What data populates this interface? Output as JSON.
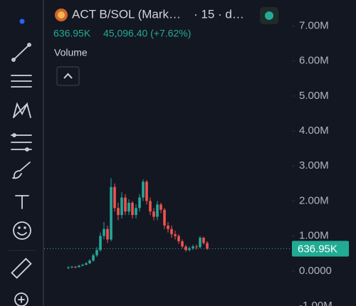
{
  "chart_data": {
    "type": "candlestick",
    "title": "ACT B/SOL (Mark…",
    "subtitle": "· 15 · d…",
    "last_price": {
      "value": 636950,
      "label": "636.95K"
    },
    "change": "45,096.40 (+7.62%)",
    "indicator": "Volume",
    "up_color": "#26a69a",
    "down_color": "#ef5350",
    "categories": [
      null,
      null,
      null,
      null,
      null,
      null,
      null,
      null,
      null,
      null,
      null,
      null,
      null,
      null,
      null,
      null,
      null,
      null,
      null,
      null,
      null,
      null,
      null,
      null,
      null,
      null,
      null,
      null,
      null,
      null,
      null,
      null,
      null,
      null,
      null,
      null,
      null,
      null,
      null,
      null
    ],
    "open": [
      90000,
      100000,
      120000,
      110000,
      150000,
      180000,
      220000,
      300000,
      450000,
      600000,
      1000000,
      1200000,
      900000,
      2400000,
      1800000,
      1600000,
      2100000,
      1700000,
      1950000,
      1600000,
      1800000,
      2100000,
      2550000,
      2000000,
      1700000,
      1550000,
      1900000,
      1750000,
      1300000,
      1200000,
      1050000,
      1000000,
      850000,
      700000,
      600000,
      650000,
      700000,
      680000,
      950000,
      800000
    ],
    "high": [
      140000,
      150000,
      150000,
      180000,
      210000,
      260000,
      340000,
      500000,
      680000,
      1100000,
      1400000,
      1300000,
      2650000,
      2500000,
      1950000,
      2250000,
      2200000,
      2050000,
      2000000,
      1900000,
      2200000,
      2620000,
      2600000,
      2100000,
      1800000,
      2000000,
      1950000,
      1800000,
      1400000,
      1300000,
      1150000,
      1050000,
      900000,
      750000,
      700000,
      750000,
      760000,
      1000000,
      980000,
      850000
    ],
    "low": [
      60000,
      80000,
      80000,
      100000,
      140000,
      160000,
      200000,
      260000,
      400000,
      550000,
      900000,
      800000,
      850000,
      1700000,
      1450000,
      1500000,
      1600000,
      1600000,
      1500000,
      1500000,
      1700000,
      2000000,
      1900000,
      1600000,
      1450000,
      1450000,
      1650000,
      1200000,
      1100000,
      950000,
      900000,
      780000,
      650000,
      550000,
      560000,
      600000,
      620000,
      650000,
      750000,
      600000
    ],
    "close": [
      100000,
      120000,
      110000,
      150000,
      180000,
      220000,
      300000,
      450000,
      600000,
      1000000,
      1200000,
      900000,
      2400000,
      1800000,
      1600000,
      2100000,
      1700000,
      1950000,
      1600000,
      1800000,
      2100000,
      2550000,
      2000000,
      1700000,
      1550000,
      1900000,
      1750000,
      1300000,
      1200000,
      1050000,
      1000000,
      850000,
      700000,
      600000,
      650000,
      700000,
      680000,
      950000,
      800000,
      636950
    ],
    "ylim": [
      -1000000,
      7540000
    ],
    "yticks": [
      {
        "value": -1000000,
        "label": "-1.00M"
      },
      {
        "value": 0,
        "label": "0.0000"
      },
      {
        "value": 1000000,
        "label": "1.00M"
      },
      {
        "value": 2000000,
        "label": "2.00M"
      },
      {
        "value": 3000000,
        "label": "3.00M"
      },
      {
        "value": 4000000,
        "label": "4.00M"
      },
      {
        "value": 5000000,
        "label": "5.00M"
      },
      {
        "value": 6000000,
        "label": "6.00M"
      },
      {
        "value": 7000000,
        "label": "7.00M"
      }
    ]
  }
}
